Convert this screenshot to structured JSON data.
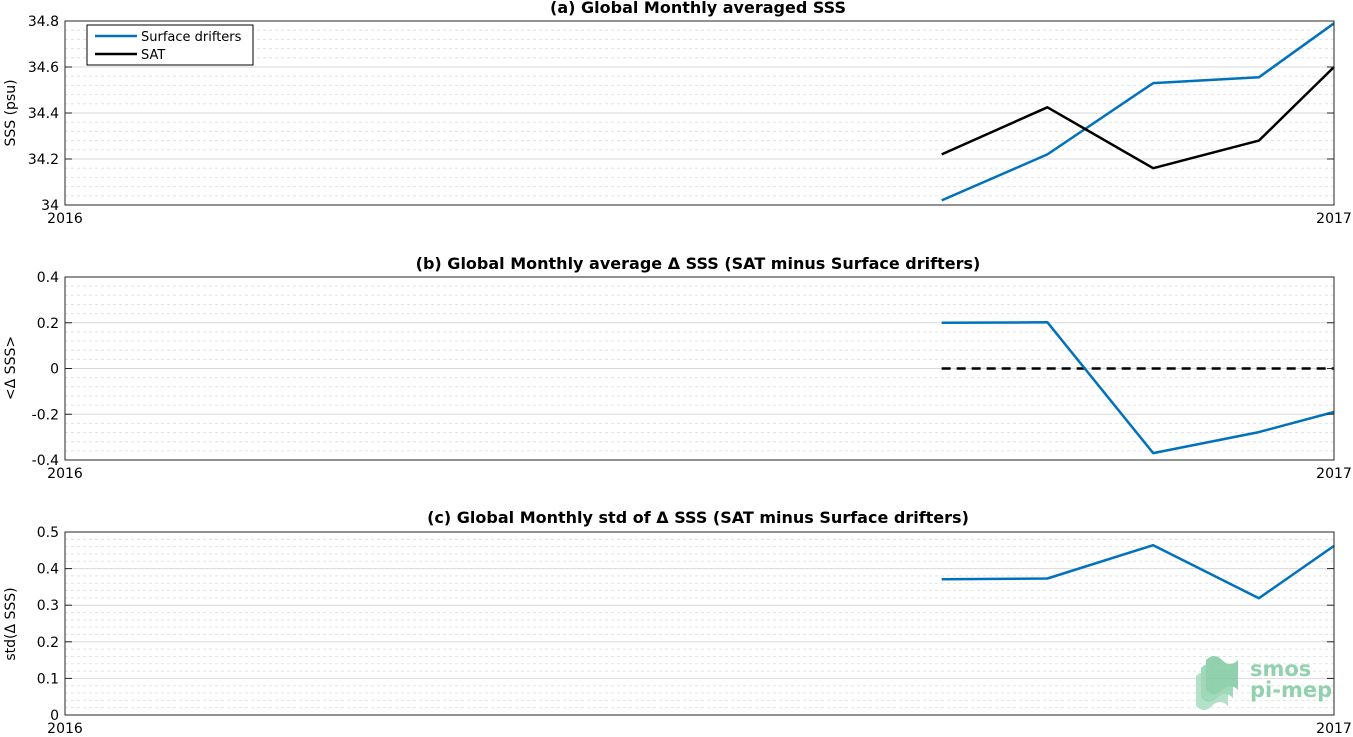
{
  "colors": {
    "drifters": "#0072bd",
    "sat": "#000000",
    "logo": "#7fc9a0"
  },
  "logo": {
    "line1": "smos",
    "line2": "pi-mep"
  },
  "x_range_ticks": [
    "2016",
    "2017"
  ],
  "chart_data": [
    {
      "type": "line",
      "title": "(a) Global Monthly averaged SSS",
      "ylabel": "SSS (psu)",
      "xlim": [
        0,
        12
      ],
      "ylim": [
        34,
        34.8
      ],
      "yticks": [
        34,
        34.2,
        34.4,
        34.6,
        34.8
      ],
      "ytick_labels": [
        "34",
        "34.2",
        "34.4",
        "34.6",
        "34.8"
      ],
      "xticks": [
        0,
        12
      ],
      "xtick_labels": [
        "2016",
        "2017"
      ],
      "grid": true,
      "legend": {
        "position": "top-left",
        "entries": [
          "Surface drifters",
          "SAT"
        ]
      },
      "series": [
        {
          "name": "Surface drifters",
          "x": [
            8.29,
            9.29,
            10.29,
            11.29,
            12.0
          ],
          "y": [
            34.02,
            34.22,
            34.53,
            34.555,
            34.79
          ]
        },
        {
          "name": "SAT",
          "x": [
            8.29,
            9.29,
            10.29,
            11.29,
            12.0
          ],
          "y": [
            34.22,
            34.425,
            34.16,
            34.28,
            34.6
          ]
        }
      ]
    },
    {
      "type": "line",
      "title": "(b) Global Monthly average Δ SSS (SAT minus Surface drifters)",
      "ylabel": "<Δ SSS>",
      "xlim": [
        0,
        12
      ],
      "ylim": [
        -0.4,
        0.4
      ],
      "yticks": [
        -0.4,
        -0.2,
        0,
        0.2,
        0.4
      ],
      "ytick_labels": [
        "-0.4",
        "-0.2",
        "0",
        "0.2",
        "0.4"
      ],
      "xticks": [
        0,
        12
      ],
      "xtick_labels": [
        "2016",
        "2017"
      ],
      "grid": true,
      "reference_line": {
        "y": 0,
        "x": [
          8.29,
          12.0
        ],
        "style": "dashed"
      },
      "series": [
        {
          "x": [
            8.29,
            9.29,
            10.29,
            11.29,
            12.0
          ],
          "y": [
            0.2,
            0.202,
            -0.37,
            -0.278,
            -0.19
          ]
        }
      ]
    },
    {
      "type": "line",
      "title": "(c) Global Monthly std of Δ SSS (SAT minus Surface drifters)",
      "ylabel": "std(Δ SSS)",
      "xlim": [
        0,
        12
      ],
      "ylim": [
        0,
        0.5
      ],
      "yticks": [
        0,
        0.1,
        0.2,
        0.3,
        0.4,
        0.5
      ],
      "ytick_labels": [
        "0",
        "0.1",
        "0.2",
        "0.3",
        "0.4",
        "0.5"
      ],
      "xticks": [
        0,
        12
      ],
      "xtick_labels": [
        "2016",
        "2017"
      ],
      "grid": true,
      "series": [
        {
          "x": [
            8.29,
            9.29,
            10.29,
            11.29,
            12.0
          ],
          "y": [
            0.371,
            0.373,
            0.464,
            0.319,
            0.462
          ]
        }
      ]
    }
  ]
}
